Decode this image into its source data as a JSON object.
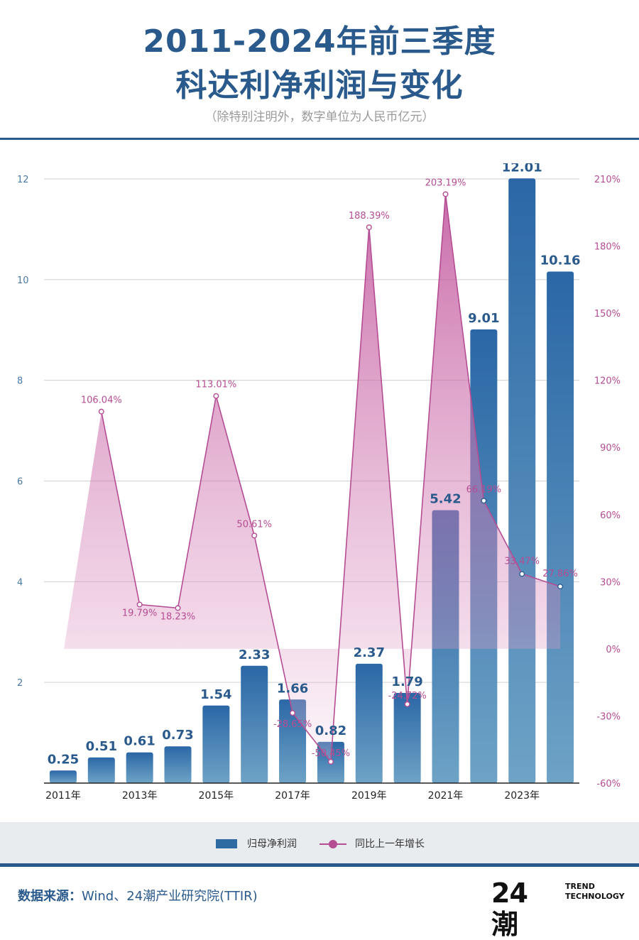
{
  "header": {
    "title_line1": "2011-2024年前三季度",
    "title_line2": "科达利净利润与变化",
    "subtitle": "（除特别注明外，数字单位为人民币亿元）"
  },
  "chart_data": {
    "type": "bar+line",
    "years": [
      "2011",
      "2012",
      "2013",
      "2014",
      "2015",
      "2016",
      "2017",
      "2018",
      "2019",
      "2020",
      "2021",
      "2022",
      "2023",
      "2024"
    ],
    "x_tick_labels": [
      "2011年",
      "",
      "2013年",
      "",
      "2015年",
      "",
      "2017年",
      "",
      "2019年",
      "",
      "2021年",
      "",
      "2023年",
      ""
    ],
    "series": [
      {
        "name": "归母净利润",
        "kind": "bar",
        "axis": "left",
        "values": [
          0.25,
          0.51,
          0.61,
          0.73,
          1.54,
          2.33,
          1.66,
          0.82,
          2.37,
          1.79,
          5.42,
          9.01,
          12.01,
          10.16
        ],
        "labels": [
          "0.25",
          "0.51",
          "0.61",
          "0.73",
          "1.54",
          "2.33",
          "1.66",
          "0.82",
          "2.37",
          "1.79",
          "5.42",
          "9.01",
          "12.01",
          "10.16"
        ],
        "color": "#2e6ba3"
      },
      {
        "name": "同比上一年增长",
        "kind": "line",
        "axis": "right",
        "values": [
          null,
          106.04,
          19.79,
          18.23,
          113.01,
          50.61,
          -28.65,
          -50.45,
          188.39,
          -24.72,
          203.19,
          66.19,
          33.47,
          27.86
        ],
        "labels": [
          "",
          "106.04%",
          "19.79%",
          "18.23%",
          "113.01%",
          "50.61%",
          "-28.65%",
          "-50.45%",
          "188.39%",
          "-24.72%",
          "203.19%",
          "66.19%",
          "33.47%",
          "27.86%"
        ],
        "color": "#b54d93"
      }
    ],
    "y_left": {
      "min": 0,
      "max": 12,
      "ticks": [
        2,
        4,
        6,
        8,
        10,
        12
      ],
      "tick_labels": [
        "2",
        "4",
        "6",
        "8",
        "10",
        "12"
      ]
    },
    "y_right": {
      "min": -60,
      "max": 210,
      "ticks": [
        -60,
        -30,
        0,
        30,
        60,
        90,
        120,
        150,
        180,
        210
      ],
      "tick_labels": [
        "-60%",
        "-30%",
        "0%",
        "30%",
        "60%",
        "90%",
        "120%",
        "150%",
        "180%",
        "210%"
      ]
    },
    "grid": true,
    "legend": "bottom"
  },
  "legend": {
    "bar_label": "归母净利润",
    "line_label": "同比上一年增长"
  },
  "footer": {
    "source_label": "数据来源：",
    "source_text": "Wind、24潮产业研究院(TTIR)",
    "logo_mark": "24潮",
    "logo_line1": "TREND",
    "logo_line2": "TECHNOLOGY"
  },
  "colors": {
    "accent": "#2a5a8c",
    "bar": "#2e6ba3",
    "line": "#b54d93",
    "axis_left_text": "#4a7aa8"
  }
}
